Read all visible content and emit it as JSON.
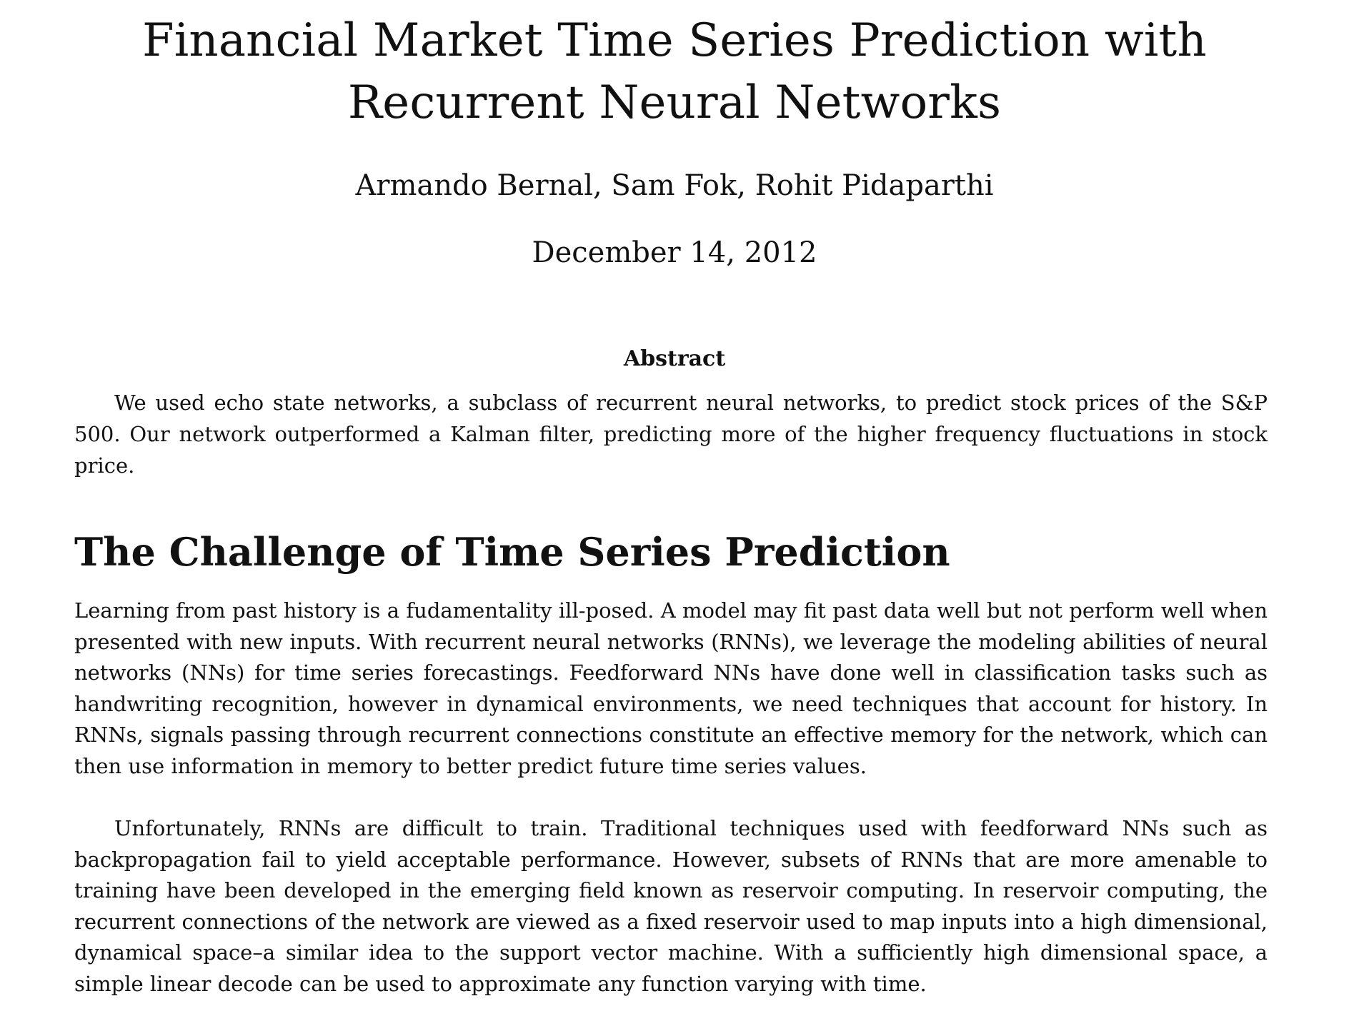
{
  "paper": {
    "title": "Financial Market Time Series Prediction with Recurrent Neural Networks",
    "authors": "Armando Bernal, Sam Fok, Rohit Pidaparthi",
    "date": "December 14, 2012",
    "abstract_heading": "Abstract",
    "abstract_text": "We used echo state networks, a subclass of recurrent neural networks, to predict stock prices of the S&P 500. Our network outperformed a Kalman filter, predicting more of the higher frequency fluctuations in stock price.",
    "section_title": "The Challenge of Time Series Prediction",
    "paragraphs": [
      "Learning from past history is a fudamentality ill-posed. A model may fit past data well but not perform well when presented with new inputs. With recurrent neural networks (RNNs), we leverage the modeling abilities of neural networks (NNs) for time series forecastings. Feedforward NNs have done well in classification tasks such as handwriting recognition, however in dynamical environments, we need techniques that account for history. In RNNs, signals passing through recurrent connections constitute an effective memory for the network, which can then use information in memory to better predict future time series values.",
      "Unfortunately, RNNs are difficult to train. Traditional techniques used with feedforward NNs such as backpropagation fail to yield acceptable performance. However, subsets of RNNs that are more amenable to training have been developed in the emerging field known as reservoir computing. In reservoir computing, the recurrent connections of the network are viewed as a fixed reservoir used to map inputs into a high dimensional, dynamical space–a similar idea to the support vector machine. With a sufficiently high dimensional space, a simple linear decode can be used to approximate any function varying with time."
    ]
  }
}
